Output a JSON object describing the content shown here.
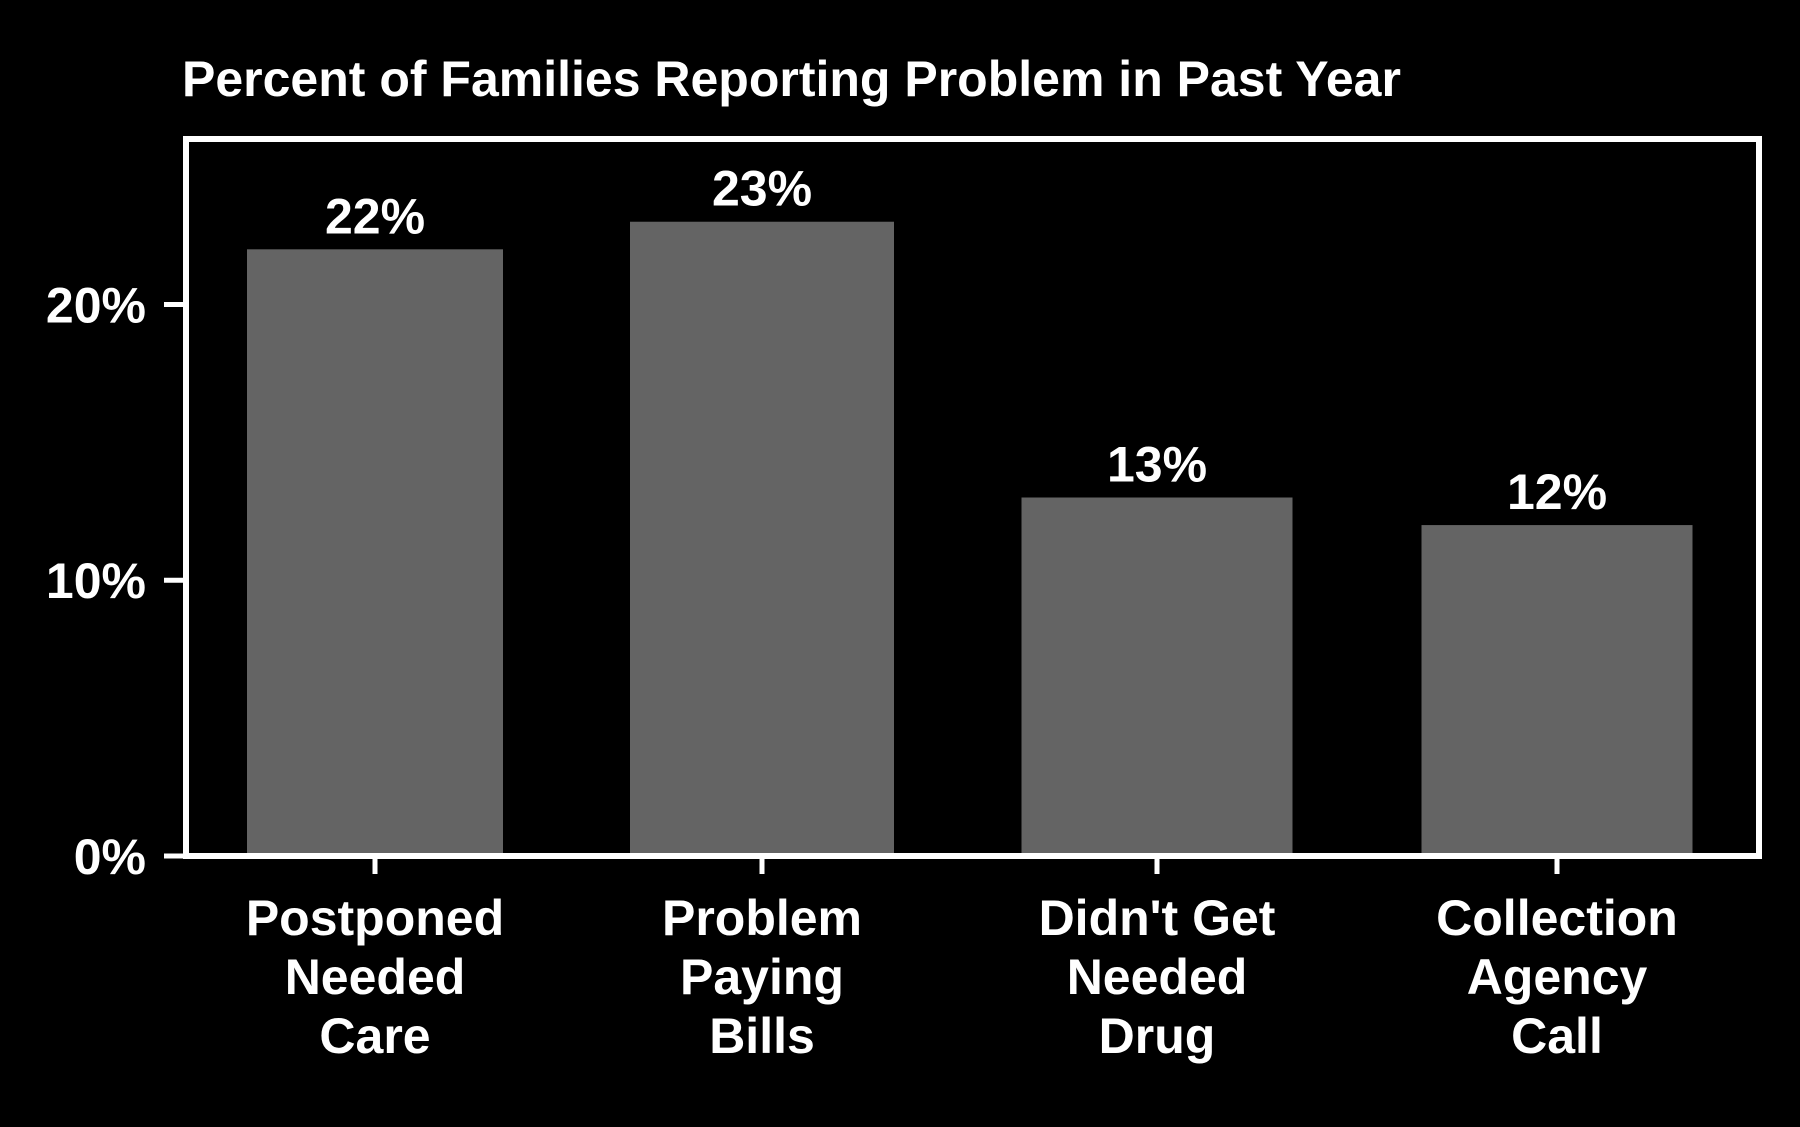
{
  "chart_data": {
    "type": "bar",
    "title": "Percent of Families Reporting Problem in Past Year",
    "categories": [
      [
        "Postponed",
        "Needed",
        "Care"
      ],
      [
        "Problem",
        "Paying",
        "Bills"
      ],
      [
        "Didn't Get",
        "Needed",
        "Drug"
      ],
      [
        "Collection",
        "Agency",
        "Call"
      ]
    ],
    "values": [
      22,
      23,
      13,
      12
    ],
    "data_labels": [
      "22%",
      "23%",
      "13%",
      "12%"
    ],
    "yticks": [
      0,
      10,
      20
    ],
    "ytick_labels": [
      "0%",
      "10%",
      "20%"
    ],
    "ylim": [
      0,
      26
    ],
    "xlabel": "",
    "ylabel": "",
    "grid": false,
    "legend": "none"
  },
  "colors": {
    "background": "#000000",
    "bar": "#646464",
    "axis": "#ffffff",
    "text": "#ffffff"
  }
}
